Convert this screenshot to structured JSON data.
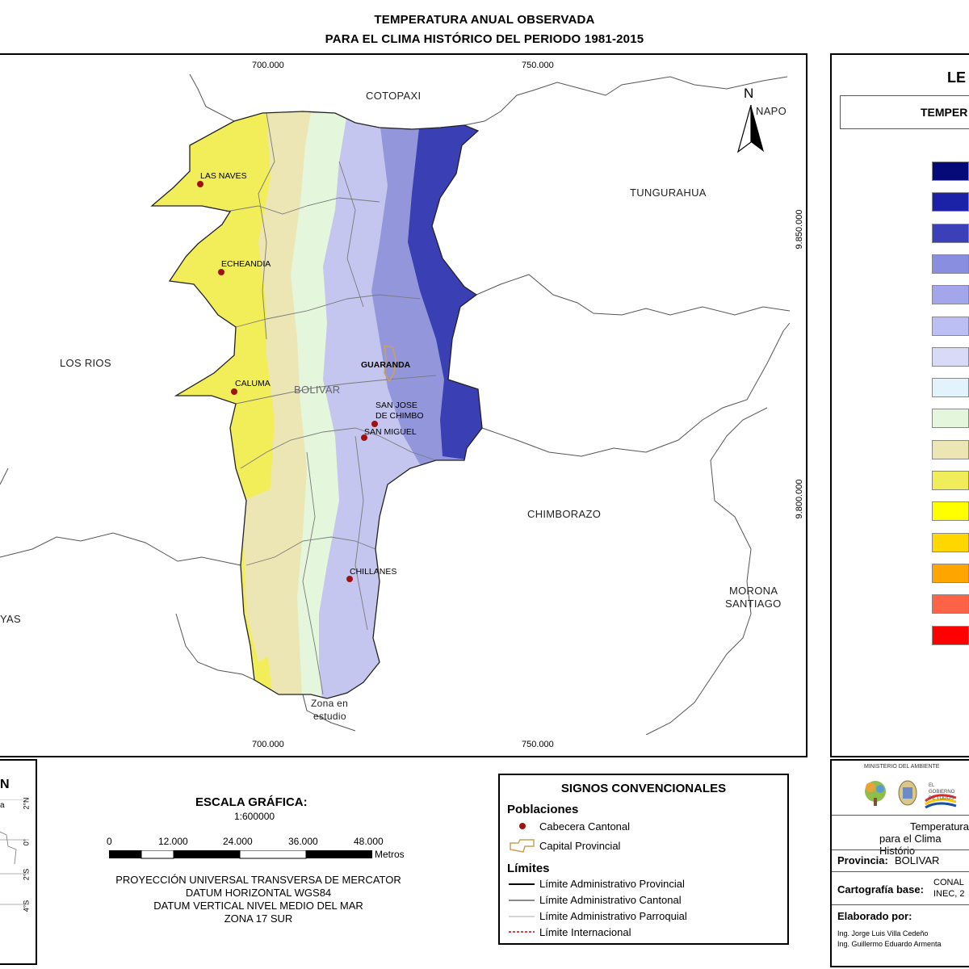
{
  "title": {
    "line1": "TEMPERATURA ANUAL OBSERVADA",
    "line2": "PARA EL CLIMA HISTÓRICO DEL PERIODO 1981-2015"
  },
  "map": {
    "top_coords": [
      "700.000",
      "750.000"
    ],
    "bottom_coords": [
      "700.000",
      "750.000"
    ],
    "right_coords": [
      "9.850.000",
      "9.800.000"
    ],
    "north_label": "N",
    "neighbors": {
      "cotopaxi": "COTOPAXI",
      "napo": "NAPO",
      "tungurahua": "TUNGURAHUA",
      "los_rios": "LOS RIOS",
      "chimborazo": "CHIMBORAZO",
      "morona": "MORONA",
      "santiago": "SANTIAGO",
      "guayas_partial": "YAS",
      "bolivar": "BOLIVAR",
      "zona1": "Zona en",
      "zona2": "estudio"
    },
    "towns": {
      "las_naves": "LAS NAVES",
      "echeandia": "ECHEANDIA",
      "caluma": "CALUMA",
      "guaranda": "GUARANDA",
      "sanjose1": "SAN JOSE",
      "sanjose2": "DE CHIMBO",
      "san_miguel": "SAN MIGUEL",
      "chillanes": "CHILLANES"
    },
    "colors": {
      "outside": "#ffffff",
      "lowland": "#f2ee5a",
      "beige": "#ece6b4",
      "pale_green": "#e4f7dc",
      "lavender": "#c4c6f0",
      "mid_blue": "#9496dc",
      "dark_blue": "#3a3fb4"
    }
  },
  "legend": {
    "title_partial": "LE",
    "subtitle_partial": "TEMPER",
    "swatches": [
      "#050a78",
      "#1c22a8",
      "#3c40b8",
      "#8a8ee0",
      "#a3a6ea",
      "#bcbff4",
      "#d8daf8",
      "#e2f3fb",
      "#e4f7dc",
      "#ece6b4",
      "#f0ec5a",
      "#ffff00",
      "#ffd700",
      "#ffa500",
      "#ff6347",
      "#ff0000"
    ]
  },
  "locator": {
    "label_partial": "N",
    "side_partial": "a",
    "lat_ticks": [
      "2°N",
      "0°",
      "2°S",
      "4°S"
    ]
  },
  "scale": {
    "title": "ESCALA GRÁFICA:",
    "ratio": "1:600000",
    "ticks": [
      "0",
      "12.000",
      "24.000",
      "36.000",
      "48.000"
    ],
    "unit": "Metros",
    "proj1": "PROYECCIÓN UNIVERSAL TRANSVERSA DE MERCATOR",
    "proj2": "DATUM HORIZONTAL WGS84",
    "proj3": "DATUM VERTICAL NIVEL MEDIO DEL MAR",
    "proj4": "ZONA 17 SUR"
  },
  "signs": {
    "title": "SIGNOS CONVENCIONALES",
    "poblaciones": "Poblaciones",
    "cabecera": "Cabecera Cantonal",
    "capital": "Capital Provincial",
    "limites": "Límites",
    "lim_prov": "Límite Administrativo Provincial",
    "lim_cant": "Límite Administrativo Cantonal",
    "lim_parr": "Límite Administrativo Parroquial",
    "lim_int": "Límite Internacional"
  },
  "info": {
    "ministry": "MINISTERIO DEL AMBIENTE",
    "gov1": "EL",
    "gov2": "GOBIERNO",
    "gov3": "DE TODOS",
    "desc1": "Temperatura",
    "desc2": "para el Clima Histório",
    "provincia_label": "Provincia:",
    "provincia_value": "BOLIVAR",
    "cart_label": "Cartografía base:",
    "cart1": "CONAL",
    "cart2": "INEC, 2",
    "elab_label": "Elaborado por:",
    "autor1": "Ing. Jorge Luis Villa Cedeño",
    "autor2": "Ing. Guillermo Eduardo Armenta"
  }
}
